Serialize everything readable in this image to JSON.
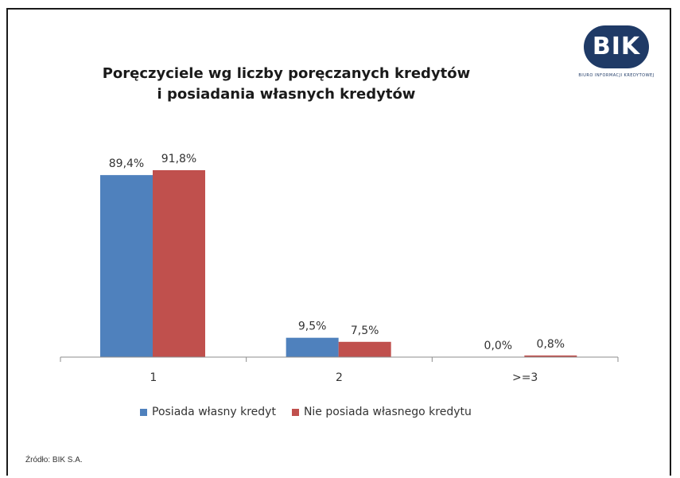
{
  "chart_data": {
    "type": "bar",
    "title": [
      "Poręczyciele wg liczby poręczanych kredytów",
      "i posiadania własnych kredytów"
    ],
    "categories": [
      "1",
      "2",
      ">=3"
    ],
    "series": [
      {
        "name": "Posiada własny kredyt",
        "values": [
          89.4,
          9.5,
          0.0
        ],
        "labels": [
          "89,4%",
          "9,5%",
          "0,0%"
        ],
        "color": "#4f81bd"
      },
      {
        "name": "Nie posiada własnego kredytu",
        "values": [
          91.8,
          7.5,
          0.8
        ],
        "labels": [
          "91,8%",
          "7,5%",
          "0,8%"
        ],
        "color": "#c0504d"
      }
    ],
    "ylim": [
      0,
      100
    ],
    "grid": false,
    "legend": "bottom"
  },
  "logo": {
    "text": "BIK",
    "subtitle": "BIURO INFORMACJI KREDYTOWEJ",
    "color": "#1f3a66"
  },
  "source": "Źródło: BIK S.A."
}
